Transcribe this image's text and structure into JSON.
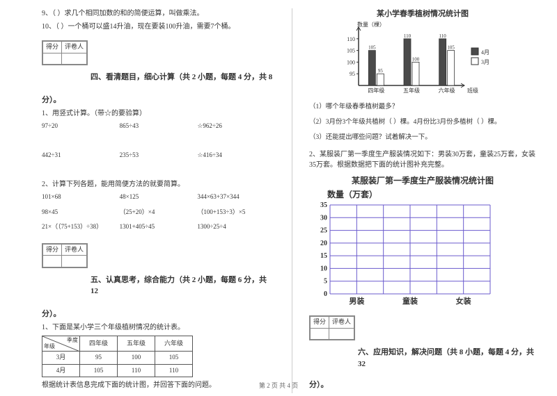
{
  "left": {
    "q9": "9、（    ）求几个相同加数的和的简便运算，叫做乘法。",
    "q10": "10、（    ）一个桶可以盛14升油，现在要装100升油，需要7个桶。",
    "scoreHeaders": [
      "得分",
      "评卷人"
    ],
    "section4Title": "四、看清题目，细心计算（共 2 小题，每题 4 分，共 8",
    "fen": "分）。",
    "s4q1": "1、用竖式计算。（带☆的要验算）",
    "s4q1r1": [
      "97÷20",
      "865÷43",
      "☆962÷26"
    ],
    "s4q1r2": [
      "442÷31",
      "235÷53",
      "☆416÷34"
    ],
    "s4q2": "2、计算下列各题，能用简便方法的就要简算。",
    "s4q2r1": [
      "101×68",
      "48×125",
      "344×63+37×344"
    ],
    "s4q2r2": [
      "98×45",
      "（25+20）×4",
      "（100+153÷3）×5"
    ],
    "s4q2r3": [
      "21×（（75+153）÷38）",
      "1301+405÷45",
      "1300÷25÷4"
    ],
    "section5Title": "五、认真思考，综合能力（共 2 小题，每题 6 分，共 12",
    "s5q1": "1、下面是某小学三个年级植树情况的统计表。",
    "tbl": {
      "corner": [
        "季度",
        "年级"
      ],
      "cols": [
        "四年级",
        "五年级",
        "六年级"
      ],
      "rows": [
        {
          "label": "3月",
          "vals": [
            "95",
            "100",
            "105"
          ]
        },
        {
          "label": "4月",
          "vals": [
            "105",
            "110",
            "110"
          ]
        }
      ]
    },
    "s5q1after": "根据统计表信息完成下面的统计图，并回答下面的问题。"
  },
  "right": {
    "chart1": {
      "title": "某小学春季植树情况统计图",
      "ylabel": "数量（棵）",
      "yticks": [
        95,
        100,
        105,
        110
      ],
      "ymin": 90,
      "ymax": 115,
      "categories": [
        "四年级",
        "五年级",
        "六年级"
      ],
      "series": [
        {
          "name": "4月",
          "color": "#4a4a4a",
          "values": [
            105,
            110,
            110
          ]
        },
        {
          "name": "3月",
          "color": "#ffffff",
          "values": [
            95,
            100,
            105
          ]
        }
      ],
      "xAxisLabel": "班级",
      "valueLabels": [
        [
          "105",
          "95"
        ],
        [
          "110",
          "100"
        ],
        [
          "110",
          "105"
        ]
      ]
    },
    "sub1": "（1）哪个年级春季植树最多？",
    "sub2": "（2）3月份3个年级共植树（    ）棵。4月份比3月份多植树（    ）棵。",
    "sub3": "（3）还能提出哪些问题？试着解决一下。",
    "s5q2": "2、某服装厂第一季度生产服装情况如下：男装30万套，童装25万套，女装35万套。根据数据把下面的统计图补充完整。",
    "chart2": {
      "title": "某服装厂第一季度生产服装情况统计图",
      "ylabel": "数量（万套）",
      "yticks": [
        0,
        5,
        10,
        15,
        20,
        25,
        30,
        35
      ],
      "categories": [
        "男装",
        "童装",
        "女装"
      ],
      "gridColor": "#6a5acd"
    },
    "scoreHeaders": [
      "得分",
      "评卷人"
    ],
    "section6Title": "六、应用知识，解决问题（共 8 小题，每题 4 分，共 32"
  },
  "footer": "第 2 页 共 4 页"
}
